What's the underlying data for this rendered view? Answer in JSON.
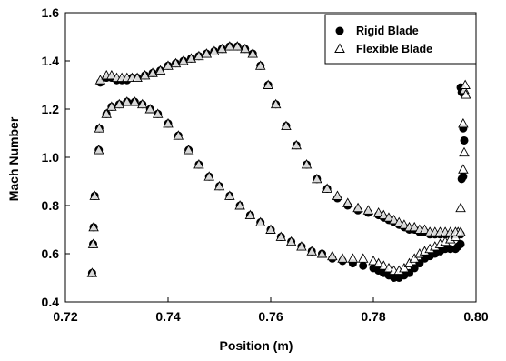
{
  "chart_data": {
    "type": "scatter",
    "title": "",
    "xlabel": "Position (m)",
    "ylabel": "Mach Number",
    "xlim": [
      0.72,
      0.8
    ],
    "ylim": [
      0.4,
      1.6
    ],
    "xticks": [
      0.72,
      0.74,
      0.76,
      0.78,
      0.8
    ],
    "yticks": [
      0.4,
      0.6,
      0.8,
      1.0,
      1.2,
      1.4,
      1.6
    ],
    "xtick_labels": [
      "0.72",
      "0.74",
      "0.76",
      "0.78",
      "0.80"
    ],
    "ytick_labels": [
      "0.4",
      "0.6",
      "0.8",
      "1.0",
      "1.2",
      "1.4",
      "1.6"
    ],
    "grid": false,
    "legend_position": "top-right",
    "series": [
      {
        "name": "Rigid Blade",
        "marker": "filled-circle",
        "color": "#000000",
        "x": [
          0.7252,
          0.7254,
          0.7255,
          0.7257,
          0.7265,
          0.7266,
          0.728,
          0.729,
          0.7305,
          0.732,
          0.7335,
          0.735,
          0.7365,
          0.738,
          0.74,
          0.742,
          0.744,
          0.746,
          0.748,
          0.75,
          0.752,
          0.754,
          0.756,
          0.758,
          0.76,
          0.762,
          0.764,
          0.766,
          0.768,
          0.77,
          0.772,
          0.774,
          0.776,
          0.778,
          0.78,
          0.781,
          0.782,
          0.783,
          0.784,
          0.785,
          0.786,
          0.787,
          0.788,
          0.789,
          0.79,
          0.791,
          0.792,
          0.793,
          0.794,
          0.795,
          0.796,
          0.7965,
          0.797,
          0.7972,
          0.7975,
          0.7977,
          0.7975,
          0.7972,
          0.797,
          0.7268,
          0.728,
          0.729,
          0.73,
          0.731,
          0.732,
          0.733,
          0.734,
          0.7355,
          0.737,
          0.7385,
          0.74,
          0.7415,
          0.743,
          0.7445,
          0.746,
          0.7475,
          0.749,
          0.7505,
          0.752,
          0.7535,
          0.755,
          0.7565,
          0.758,
          0.7595,
          0.761,
          0.763,
          0.765,
          0.767,
          0.769,
          0.771,
          0.773,
          0.775,
          0.777,
          0.779,
          0.781,
          0.782,
          0.783,
          0.784,
          0.785,
          0.786,
          0.787,
          0.788,
          0.789,
          0.79,
          0.791,
          0.792,
          0.793,
          0.794,
          0.795,
          0.796,
          0.797
        ],
        "y": [
          0.52,
          0.64,
          0.71,
          0.84,
          1.03,
          1.12,
          1.18,
          1.21,
          1.22,
          1.23,
          1.23,
          1.22,
          1.2,
          1.18,
          1.14,
          1.09,
          1.03,
          0.97,
          0.92,
          0.88,
          0.84,
          0.8,
          0.76,
          0.73,
          0.7,
          0.67,
          0.65,
          0.63,
          0.61,
          0.6,
          0.58,
          0.57,
          0.56,
          0.55,
          0.54,
          0.53,
          0.52,
          0.51,
          0.5,
          0.5,
          0.51,
          0.52,
          0.54,
          0.56,
          0.58,
          0.59,
          0.6,
          0.61,
          0.62,
          0.62,
          0.62,
          0.63,
          0.64,
          0.91,
          0.92,
          1.07,
          1.12,
          1.27,
          1.29,
          1.31,
          1.33,
          1.33,
          1.32,
          1.32,
          1.32,
          1.33,
          1.33,
          1.34,
          1.35,
          1.36,
          1.38,
          1.39,
          1.4,
          1.41,
          1.42,
          1.43,
          1.44,
          1.45,
          1.46,
          1.46,
          1.45,
          1.43,
          1.38,
          1.3,
          1.22,
          1.13,
          1.05,
          0.97,
          0.91,
          0.87,
          0.83,
          0.8,
          0.78,
          0.77,
          0.76,
          0.75,
          0.74,
          0.73,
          0.72,
          0.71,
          0.7,
          0.7,
          0.69,
          0.69,
          0.68,
          0.68,
          0.68,
          0.68,
          0.68,
          0.68,
          0.68
        ]
      },
      {
        "name": "Flexible Blade",
        "marker": "open-triangle",
        "color": "#000000",
        "x": [
          0.7252,
          0.7254,
          0.7255,
          0.7257,
          0.7265,
          0.7266,
          0.728,
          0.729,
          0.7305,
          0.732,
          0.7335,
          0.735,
          0.7365,
          0.738,
          0.74,
          0.742,
          0.744,
          0.746,
          0.748,
          0.75,
          0.752,
          0.754,
          0.756,
          0.758,
          0.76,
          0.762,
          0.764,
          0.766,
          0.768,
          0.77,
          0.772,
          0.774,
          0.776,
          0.778,
          0.78,
          0.781,
          0.782,
          0.783,
          0.784,
          0.785,
          0.786,
          0.787,
          0.788,
          0.789,
          0.79,
          0.791,
          0.792,
          0.793,
          0.794,
          0.795,
          0.796,
          0.7965,
          0.797,
          0.7975,
          0.7977,
          0.7975,
          0.7977,
          0.7979,
          0.798,
          0.7268,
          0.728,
          0.729,
          0.73,
          0.731,
          0.732,
          0.733,
          0.734,
          0.7355,
          0.737,
          0.7385,
          0.74,
          0.7415,
          0.743,
          0.7445,
          0.746,
          0.7475,
          0.749,
          0.7505,
          0.752,
          0.7535,
          0.755,
          0.7565,
          0.758,
          0.7595,
          0.761,
          0.763,
          0.765,
          0.767,
          0.769,
          0.771,
          0.773,
          0.775,
          0.777,
          0.779,
          0.781,
          0.782,
          0.783,
          0.784,
          0.785,
          0.786,
          0.787,
          0.788,
          0.789,
          0.79,
          0.791,
          0.792,
          0.793,
          0.794,
          0.795,
          0.796,
          0.797
        ],
        "y": [
          0.52,
          0.64,
          0.71,
          0.84,
          1.03,
          1.12,
          1.18,
          1.21,
          1.22,
          1.23,
          1.23,
          1.22,
          1.2,
          1.18,
          1.14,
          1.09,
          1.03,
          0.97,
          0.92,
          0.88,
          0.84,
          0.8,
          0.76,
          0.73,
          0.7,
          0.67,
          0.65,
          0.63,
          0.61,
          0.6,
          0.59,
          0.58,
          0.58,
          0.58,
          0.57,
          0.56,
          0.55,
          0.54,
          0.53,
          0.53,
          0.54,
          0.56,
          0.58,
          0.6,
          0.61,
          0.62,
          0.63,
          0.64,
          0.65,
          0.66,
          0.67,
          0.69,
          0.79,
          0.95,
          1.02,
          1.14,
          1.28,
          1.3,
          1.26,
          1.32,
          1.34,
          1.34,
          1.33,
          1.33,
          1.33,
          1.33,
          1.33,
          1.34,
          1.35,
          1.36,
          1.38,
          1.39,
          1.4,
          1.41,
          1.42,
          1.43,
          1.44,
          1.45,
          1.46,
          1.46,
          1.45,
          1.43,
          1.38,
          1.3,
          1.22,
          1.13,
          1.05,
          0.97,
          0.91,
          0.87,
          0.84,
          0.81,
          0.79,
          0.78,
          0.77,
          0.76,
          0.75,
          0.74,
          0.73,
          0.72,
          0.71,
          0.71,
          0.7,
          0.7,
          0.69,
          0.69,
          0.69,
          0.69,
          0.69,
          0.69,
          0.69
        ]
      }
    ]
  }
}
